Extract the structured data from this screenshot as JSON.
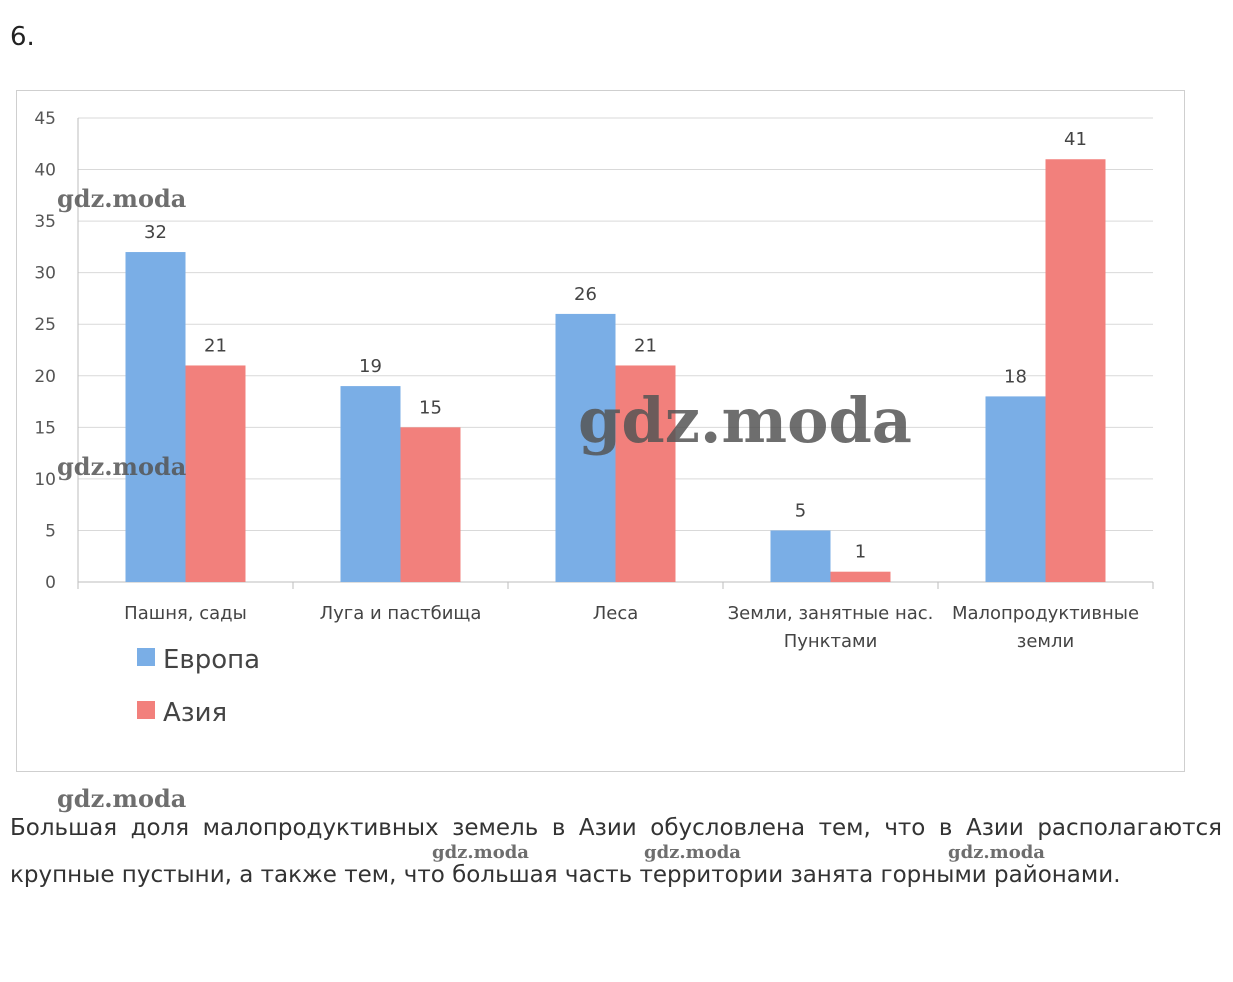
{
  "task_number": "6.",
  "watermark_text": "gdz.moda",
  "chart_data": {
    "type": "bar",
    "categories": [
      [
        "Пашня, сады"
      ],
      [
        "Луга и пастбища"
      ],
      [
        "Леса"
      ],
      [
        "Земли, занятные нас.",
        "Пунктами"
      ],
      [
        "Малопродуктивные",
        "земли"
      ]
    ],
    "series": [
      {
        "name": "Европа",
        "color": "#7aaee6",
        "values": [
          32,
          19,
          26,
          5,
          18
        ]
      },
      {
        "name": "Азия",
        "color": "#f2807c",
        "values": [
          21,
          15,
          21,
          1,
          41
        ]
      }
    ],
    "ylim": [
      0,
      45
    ],
    "yticks": [
      0,
      5,
      10,
      15,
      20,
      25,
      30,
      35,
      40,
      45
    ],
    "grid": true,
    "legend_position": "bottom-left",
    "title": "",
    "xlabel": "",
    "ylabel": ""
  },
  "answer_text": "Большая доля малопродуктивных земель в Азии обусловлена тем, что в Азии располагаются крупные пустыни, а также тем, что большая часть территории занята горными районами."
}
